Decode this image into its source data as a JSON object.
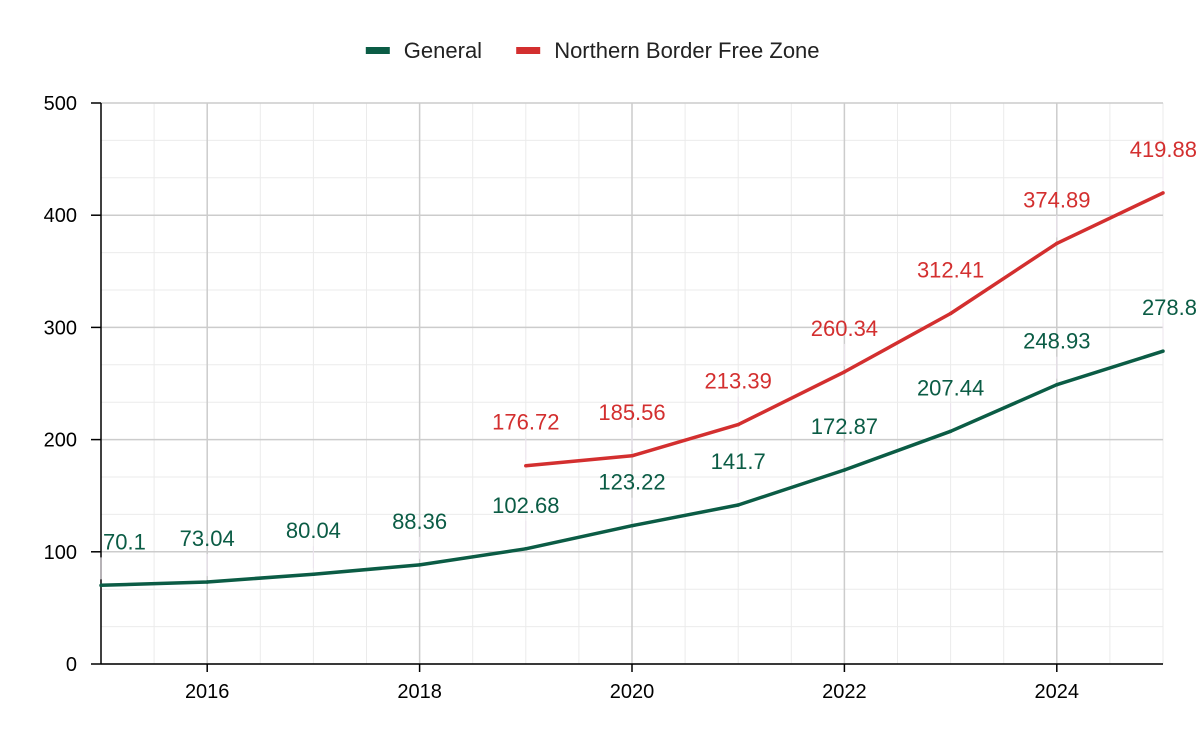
{
  "chart_data": {
    "type": "line",
    "x": [
      2015,
      2016,
      2017,
      2018,
      2019,
      2020,
      2021,
      2022,
      2023,
      2024,
      2025
    ],
    "xlim": [
      2015,
      2025
    ],
    "x_ticks": [
      2016,
      2018,
      2020,
      2022,
      2024
    ],
    "x_tick_labels": [
      "2016",
      "2018",
      "2020",
      "2022",
      "2024"
    ],
    "ylim": [
      0,
      500
    ],
    "y_ticks": [
      0,
      100,
      200,
      300,
      400,
      500
    ],
    "y_tick_labels": [
      "0",
      "100",
      "200",
      "300",
      "400",
      "500"
    ],
    "grid": true,
    "legend_position": "top-center",
    "series": [
      {
        "name": "General",
        "color": "#0b5c45",
        "values": [
          70.1,
          73.04,
          80.04,
          88.36,
          102.68,
          123.22,
          141.7,
          172.87,
          207.44,
          248.93,
          278.8
        ],
        "labels": [
          "70.1",
          "73.04",
          "80.04",
          "88.36",
          "102.68",
          "123.22",
          "141.7",
          "172.87",
          "207.44",
          "248.93",
          "278.8"
        ]
      },
      {
        "name": "Northern Border Free Zone",
        "color": "#d32f2f",
        "values": [
          null,
          null,
          null,
          null,
          176.72,
          185.56,
          213.39,
          260.34,
          312.41,
          374.89,
          419.88
        ],
        "labels": [
          "",
          "",
          "",
          "",
          "176.72",
          "185.56",
          "213.39",
          "260.34",
          "312.41",
          "374.89",
          "419.88"
        ]
      }
    ]
  }
}
